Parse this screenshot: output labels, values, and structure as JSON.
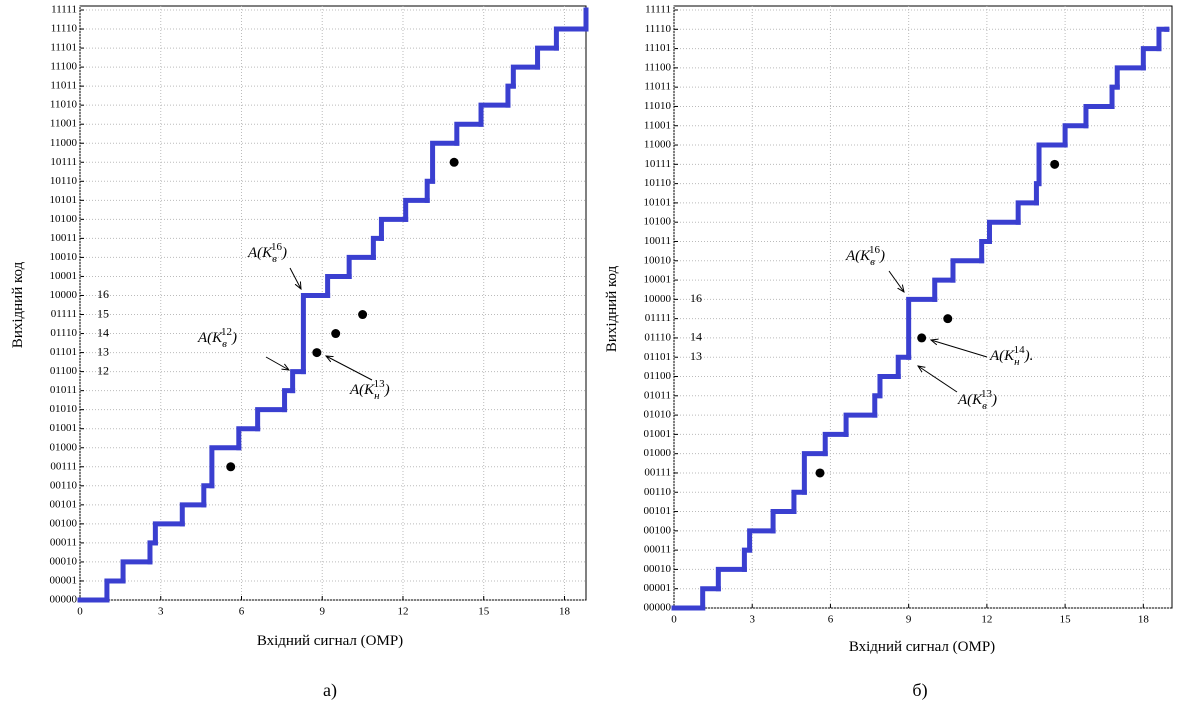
{
  "chart_data": [
    {
      "type": "step",
      "caption": "а)",
      "xlabel": "Вхідний сигнал (ОМР)",
      "ylabel": "Вихідний код",
      "xlim": [
        0,
        18.8
      ],
      "ylim": [
        0,
        31
      ],
      "xticks": [
        0,
        3,
        6,
        9,
        12,
        15,
        18
      ],
      "yticks": [
        {
          "value": 0,
          "label": "00000"
        },
        {
          "value": 1,
          "label": "00001"
        },
        {
          "value": 2,
          "label": "00010"
        },
        {
          "value": 3,
          "label": "00011"
        },
        {
          "value": 4,
          "label": "00100"
        },
        {
          "value": 5,
          "label": "00101"
        },
        {
          "value": 6,
          "label": "00110"
        },
        {
          "value": 7,
          "label": "00111"
        },
        {
          "value": 8,
          "label": "01000"
        },
        {
          "value": 9,
          "label": "01001"
        },
        {
          "value": 10,
          "label": "01010"
        },
        {
          "value": 11,
          "label": "01011"
        },
        {
          "value": 12,
          "label": "01100"
        },
        {
          "value": 13,
          "label": "01101"
        },
        {
          "value": 14,
          "label": "01110"
        },
        {
          "value": 15,
          "label": "01111"
        },
        {
          "value": 16,
          "label": "10000"
        },
        {
          "value": 17,
          "label": "10001"
        },
        {
          "value": 18,
          "label": "10010"
        },
        {
          "value": 19,
          "label": "10011"
        },
        {
          "value": 20,
          "label": "10100"
        },
        {
          "value": 21,
          "label": "10101"
        },
        {
          "value": 22,
          "label": "10110"
        },
        {
          "value": 23,
          "label": "10111"
        },
        {
          "value": 24,
          "label": "11000"
        },
        {
          "value": 25,
          "label": "11001"
        },
        {
          "value": 26,
          "label": "11010"
        },
        {
          "value": 27,
          "label": "11011"
        },
        {
          "value": 28,
          "label": "11100"
        },
        {
          "value": 29,
          "label": "11101"
        },
        {
          "value": 30,
          "label": "11110"
        },
        {
          "value": 31,
          "label": "11111"
        }
      ],
      "grid": true,
      "color": "#3a3fd0",
      "x": [
        0,
        1.0,
        1.6,
        2.6,
        2.8,
        3.8,
        4.6,
        4.9,
        5.9,
        6.6,
        7.6,
        7.9,
        8.3,
        9.2,
        10.0,
        10.9,
        11.2,
        12.1,
        12.9,
        13.1,
        14.0,
        14.9,
        15.9,
        16.1,
        17.0,
        17.7,
        18.8
      ],
      "values": [
        0,
        1,
        2,
        3,
        4,
        5,
        6,
        8,
        9,
        10,
        11,
        12,
        16,
        17,
        18,
        19,
        20,
        21,
        22,
        24,
        25,
        26,
        27,
        28,
        29,
        30,
        31
      ],
      "points": {
        "color": "#000",
        "x": [
          5.6,
          8.8,
          9.5,
          10.5,
          13.9
        ],
        "values": [
          7,
          13,
          14,
          15,
          23
        ]
      },
      "level_labels": [
        16,
        15,
        14,
        13,
        12
      ],
      "annotations": [
        {
          "base": "A(K",
          "sub": "в",
          "sup": "16",
          "tail": ")"
        },
        {
          "base": "A(K",
          "sub": "в",
          "sup": "12",
          "tail": ")"
        },
        {
          "base": "A(K",
          "sub": "н",
          "sup": "13",
          "tail": ")"
        }
      ]
    },
    {
      "type": "step",
      "caption": "б)",
      "xlabel": "Вхідний сигнал (ОМР)",
      "ylabel": "Вихідний код",
      "xlim": [
        0,
        19.1
      ],
      "ylim": [
        0,
        31
      ],
      "xticks": [
        0,
        3,
        6,
        9,
        12,
        15,
        18
      ],
      "yticks": [
        {
          "value": 0,
          "label": "00000"
        },
        {
          "value": 1,
          "label": "00001"
        },
        {
          "value": 2,
          "label": "00010"
        },
        {
          "value": 3,
          "label": "00011"
        },
        {
          "value": 4,
          "label": "00100"
        },
        {
          "value": 5,
          "label": "00101"
        },
        {
          "value": 6,
          "label": "00110"
        },
        {
          "value": 7,
          "label": "00111"
        },
        {
          "value": 8,
          "label": "01000"
        },
        {
          "value": 9,
          "label": "01001"
        },
        {
          "value": 10,
          "label": "01010"
        },
        {
          "value": 11,
          "label": "01011"
        },
        {
          "value": 12,
          "label": "01100"
        },
        {
          "value": 13,
          "label": "01101"
        },
        {
          "value": 14,
          "label": "01110"
        },
        {
          "value": 15,
          "label": "01111"
        },
        {
          "value": 16,
          "label": "10000"
        },
        {
          "value": 17,
          "label": "10001"
        },
        {
          "value": 18,
          "label": "10010"
        },
        {
          "value": 19,
          "label": "10011"
        },
        {
          "value": 20,
          "label": "10100"
        },
        {
          "value": 21,
          "label": "10101"
        },
        {
          "value": 22,
          "label": "10110"
        },
        {
          "value": 23,
          "label": "10111"
        },
        {
          "value": 24,
          "label": "11000"
        },
        {
          "value": 25,
          "label": "11001"
        },
        {
          "value": 26,
          "label": "11010"
        },
        {
          "value": 27,
          "label": "11011"
        },
        {
          "value": 28,
          "label": "11100"
        },
        {
          "value": 29,
          "label": "11101"
        },
        {
          "value": 30,
          "label": "11110"
        },
        {
          "value": 31,
          "label": "11111"
        }
      ],
      "grid": true,
      "color": "#3a3fd0",
      "x": [
        0,
        1.1,
        1.7,
        2.7,
        2.9,
        3.8,
        4.6,
        5.0,
        5.8,
        6.6,
        7.7,
        7.9,
        8.6,
        9.0,
        10.0,
        10.7,
        11.8,
        12.1,
        13.2,
        13.9,
        14.0,
        15.0,
        15.8,
        16.8,
        17.0,
        18.0,
        18.6,
        18.9
      ],
      "values": [
        0,
        1,
        2,
        3,
        4,
        5,
        6,
        8,
        9,
        10,
        11,
        12,
        13,
        16,
        17,
        18,
        19,
        20,
        21,
        22,
        24,
        25,
        26,
        27,
        28,
        29,
        30,
        30
      ],
      "points": {
        "color": "#000",
        "x": [
          5.6,
          9.5,
          10.5,
          14.6
        ],
        "values": [
          7,
          14,
          15,
          23
        ]
      },
      "level_labels": [
        16,
        14,
        13
      ],
      "annotations": [
        {
          "base": "A(K",
          "sub": "в",
          "sup": "16",
          "tail": ")"
        },
        {
          "base": "A(K",
          "sub": "н",
          "sup": "14",
          "tail": ")."
        },
        {
          "base": "A(K",
          "sub": "в",
          "sup": "13",
          "tail": ")"
        }
      ]
    }
  ]
}
